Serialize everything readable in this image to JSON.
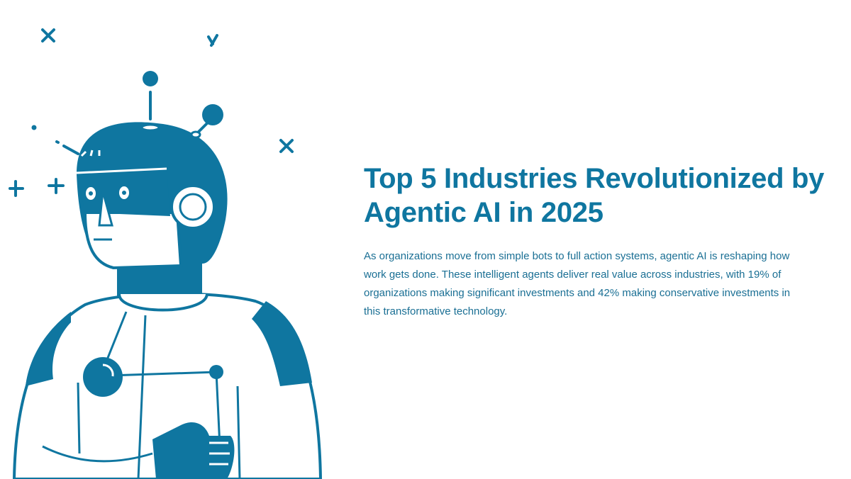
{
  "slide": {
    "title": "Top 5 Industries Revolutionized by Agentic AI in 2025",
    "body": "As organizations move from simple bots to full action systems, agentic AI is reshaping how work gets done. These intelligent agents deliver real value across industries, with 19% of organizations making significant investments and 42% making conservative investments in this transformative technology.",
    "illustration": "robot-illustration",
    "colors": {
      "accent": "#0f76a0",
      "background": "#ffffff"
    }
  }
}
